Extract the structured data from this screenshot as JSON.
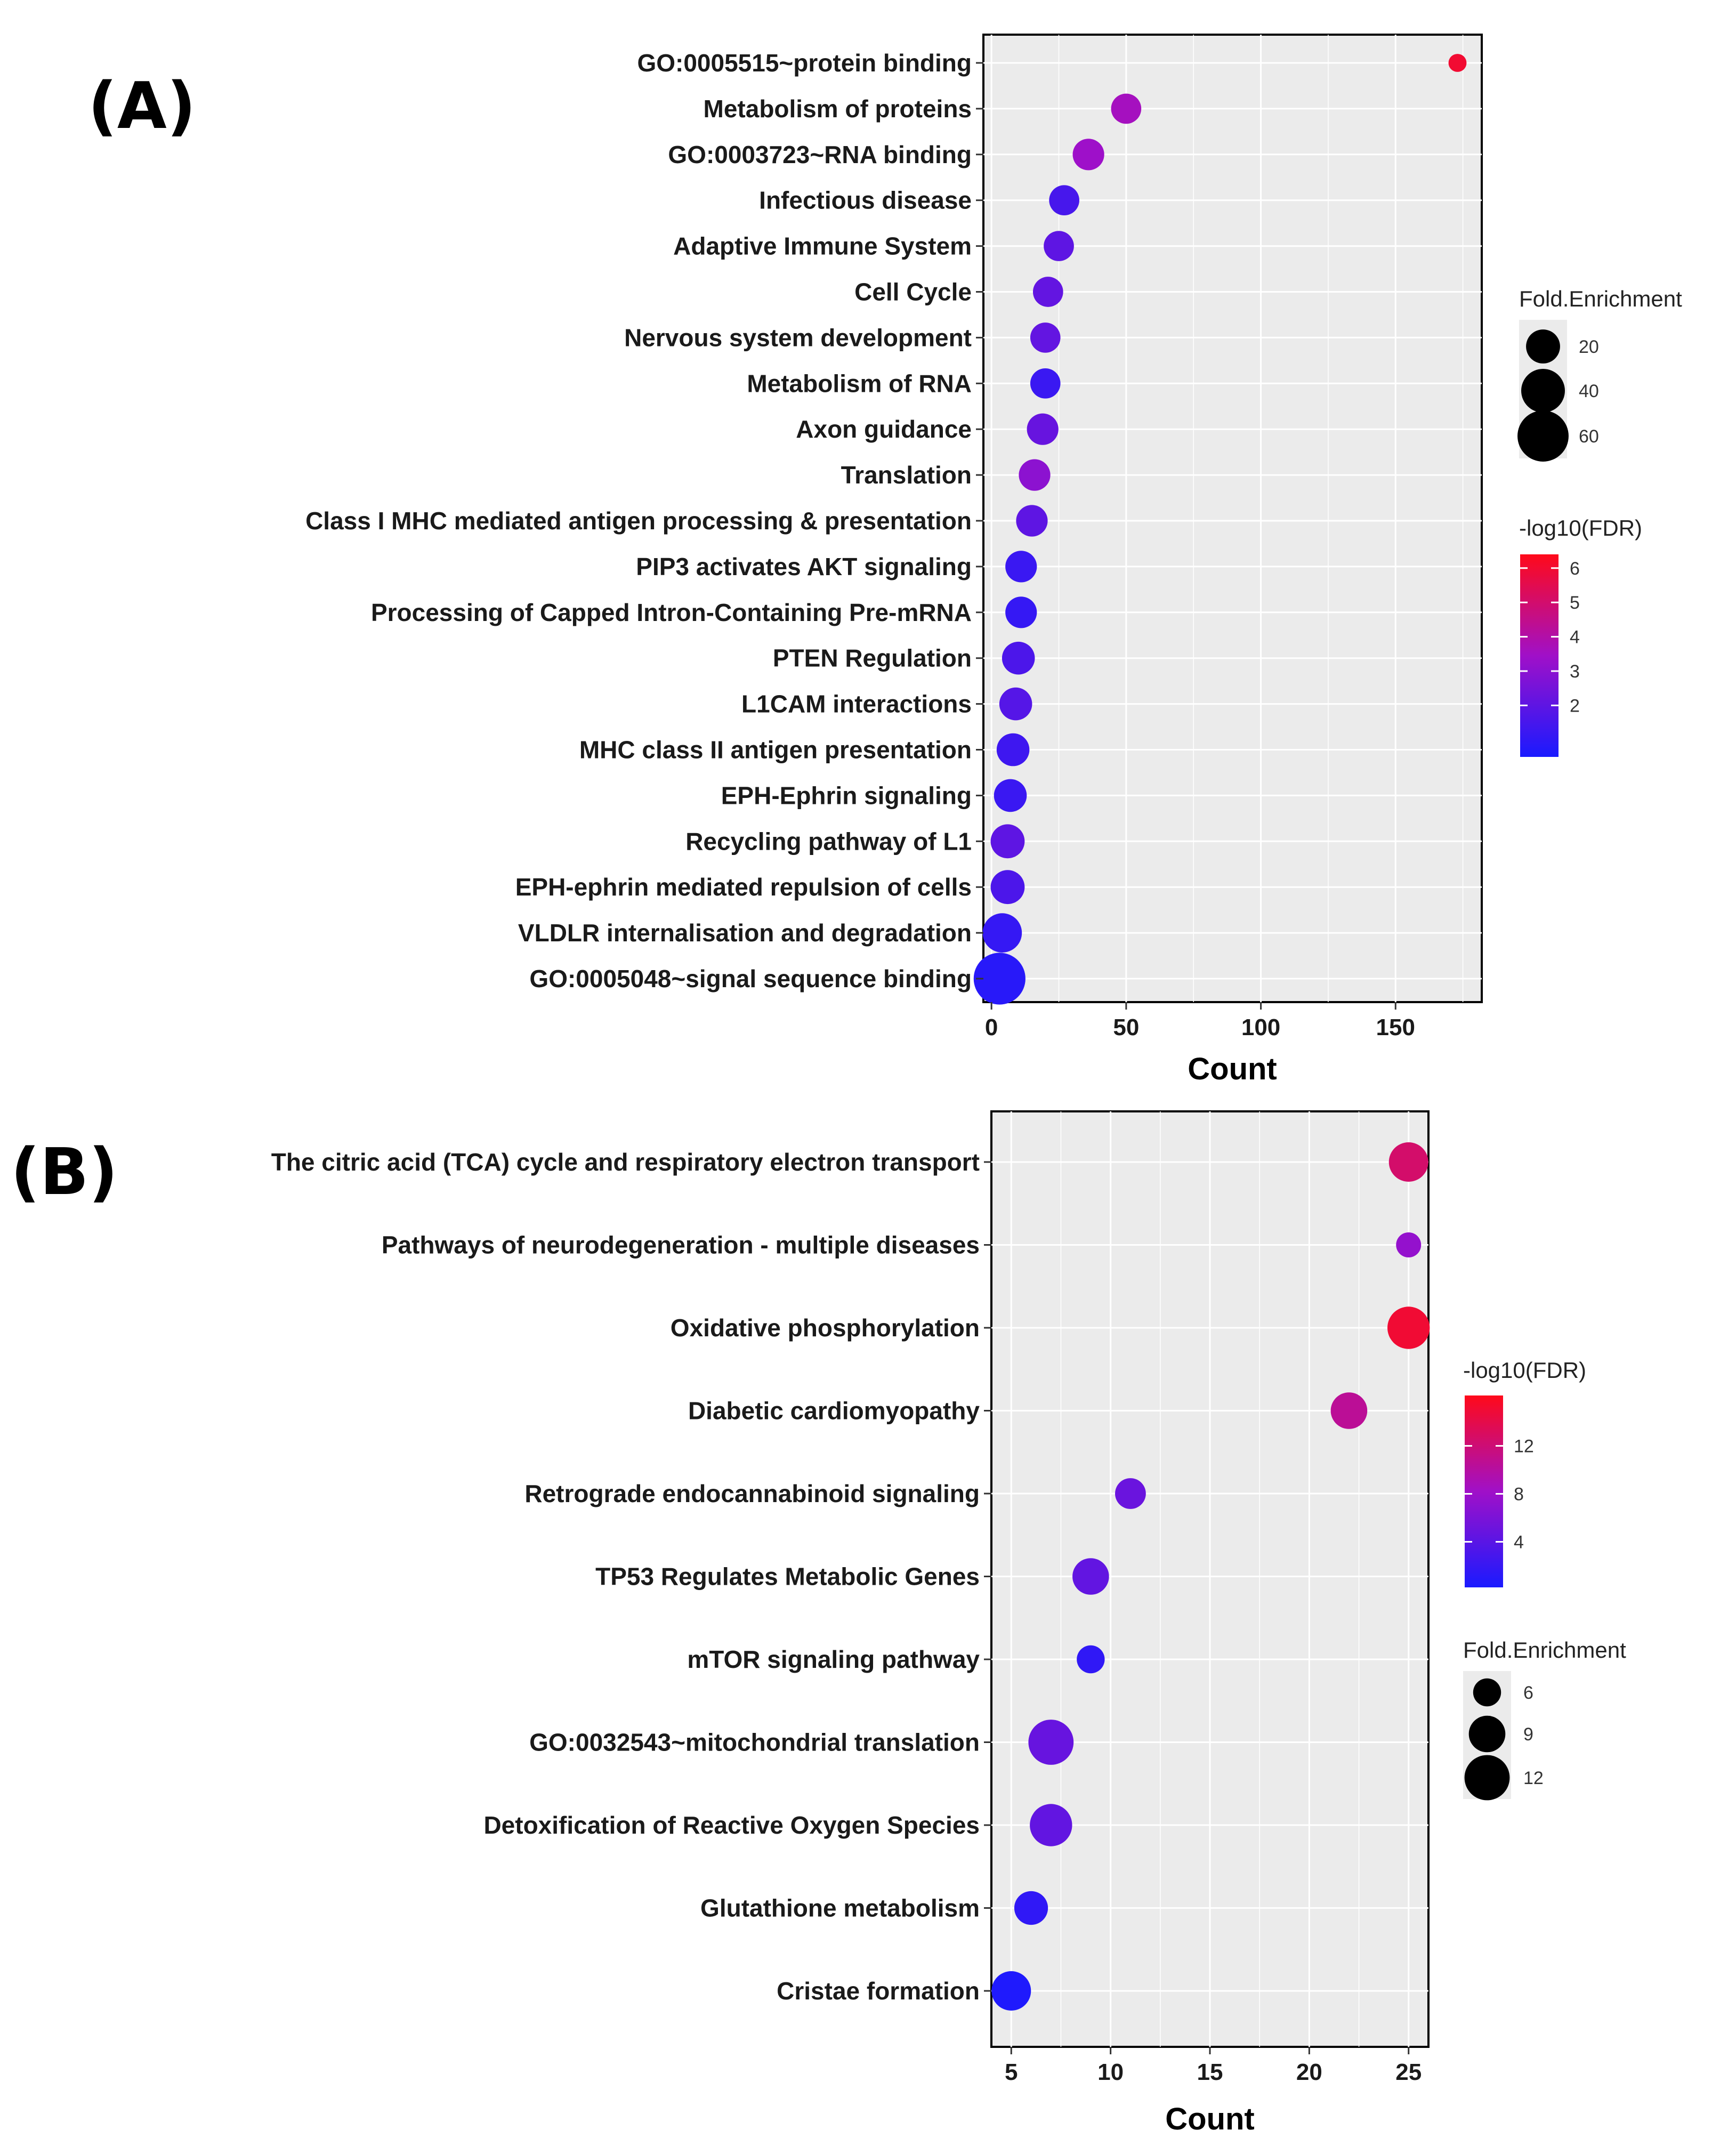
{
  "chart_data": [
    {
      "panel": "(A)",
      "type": "scatter",
      "subtype": "dot-plot",
      "xlabel": "Count",
      "xlim": [
        -3,
        182
      ],
      "xticks": [
        0,
        50,
        100,
        150
      ],
      "categories": [
        "GO:0005515~protein binding",
        "Metabolism of proteins",
        "GO:0003723~RNA binding",
        "Infectious disease",
        "Adaptive Immune System",
        "Cell Cycle",
        "Nervous system development",
        "Metabolism of RNA",
        "Axon guidance",
        "Translation",
        "Class I MHC mediated antigen processing & presentation",
        "PIP3 activates AKT signaling",
        "Processing of Capped Intron-Containing Pre-mRNA",
        "PTEN Regulation",
        "L1CAM interactions",
        "MHC class II antigen presentation",
        "EPH-Ephrin signaling",
        "Recycling pathway of L1",
        "EPH-ephrin mediated repulsion of cells",
        "VLDLR internalisation and degradation",
        "GO:0005048~signal sequence binding"
      ],
      "count": [
        173,
        50,
        36,
        27,
        25,
        21,
        20,
        20,
        19,
        16,
        15,
        11,
        11,
        10,
        9,
        8,
        7,
        6,
        6,
        4,
        3
      ],
      "fold_enrichment": [
        2,
        14,
        16,
        14,
        14,
        14,
        14,
        14,
        16,
        16,
        16,
        16,
        16,
        18,
        18,
        18,
        18,
        20,
        20,
        30,
        62
      ],
      "neg_log10_fdr": [
        6.0,
        3.6,
        3.4,
        1.5,
        2.0,
        2.1,
        2.1,
        1.2,
        2.2,
        3.0,
        2.0,
        1.2,
        1.1,
        1.6,
        1.8,
        1.3,
        1.2,
        2.0,
        1.6,
        1.1,
        0.8
      ],
      "legend_size": {
        "title": "Fold.Enrichment",
        "values": [
          20,
          40,
          60
        ],
        "labels": [
          "20",
          "40",
          "60"
        ]
      },
      "legend_color": {
        "title": "-log10(FDR)",
        "range": [
          0.5,
          6.4
        ],
        "ticks": [
          6,
          5,
          4,
          3,
          2
        ],
        "tick_labels": [
          "6",
          "5",
          "4",
          "3",
          "2"
        ]
      }
    },
    {
      "panel": "(B)",
      "type": "scatter",
      "subtype": "dot-plot",
      "xlabel": "Count",
      "xlim": [
        4.0,
        26.0
      ],
      "xticks": [
        5,
        10,
        15,
        20,
        25
      ],
      "categories": [
        "The citric acid (TCA) cycle and respiratory electron transport",
        "Pathways of neurodegeneration - multiple diseases",
        "Oxidative phosphorylation",
        "Diabetic cardiomyopathy",
        "Retrograde endocannabinoid signaling",
        "TP53 Regulates Metabolic Genes",
        "mTOR signaling pathway",
        "GO:0032543~mitochondrial translation",
        "Detoxification of Reactive Oxygen Species",
        "Glutathione metabolism",
        "Cristae formation"
      ],
      "count": [
        25,
        25,
        25,
        22,
        11,
        9,
        9,
        7,
        7,
        6,
        5
      ],
      "fold_enrichment": [
        10,
        5,
        11,
        9,
        7,
        9,
        6,
        12,
        11,
        8,
        10
      ],
      "neg_log10_fdr": [
        12.5,
        7.5,
        15.0,
        10.5,
        5.0,
        4.5,
        1.5,
        4.8,
        4.5,
        1.5,
        0.5
      ],
      "legend_color": {
        "title": "-log10(FDR)",
        "range": [
          0.2,
          16.2
        ],
        "ticks": [
          12,
          8,
          4
        ],
        "tick_labels": [
          "12",
          "8",
          "4"
        ]
      },
      "legend_size": {
        "title": "Fold.Enrichment",
        "values": [
          6,
          9,
          12
        ],
        "labels": [
          "6",
          "9",
          "12"
        ]
      }
    }
  ],
  "labels": {
    "panel_a": "(A)",
    "panel_b": "(B)"
  },
  "colors": {
    "low": "#1a1aff",
    "high": "#ff0a1a",
    "panel_bg": "#ebebeb",
    "grid": "#ffffff"
  }
}
